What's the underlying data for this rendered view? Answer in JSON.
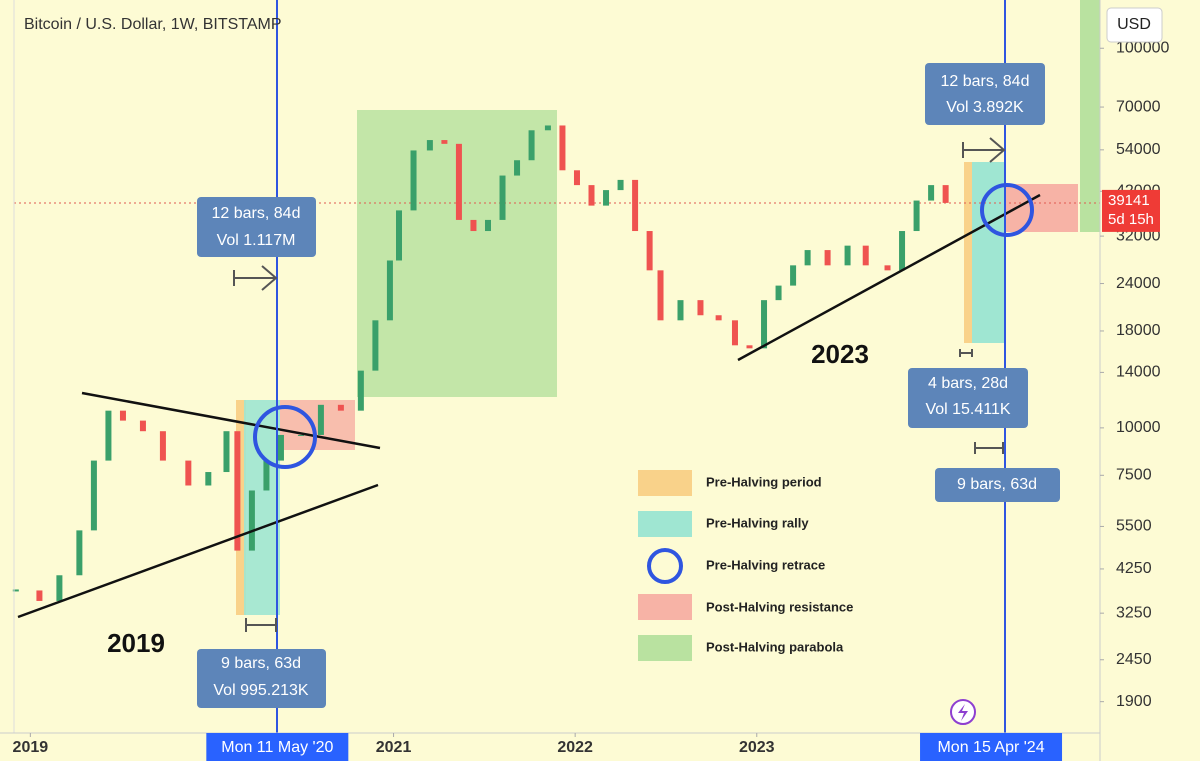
{
  "chart_data": {
    "type": "candlestick",
    "title": "Bitcoin / U.S. Dollar, 1W, BITSTAMP",
    "currency": "USD",
    "log_scale": true,
    "up_color": "#3aa06a",
    "down_color": "#ef5350",
    "series": [
      {
        "name": "BTCUSD",
        "x": [
          2018.92,
          2019.05,
          2019.16,
          2019.27,
          2019.35,
          2019.43,
          2019.51,
          2019.62,
          2019.73,
          2019.87,
          2019.98,
          2020.08,
          2020.14,
          2020.22,
          2020.3,
          2020.38,
          2020.49,
          2020.6,
          2020.71,
          2020.82,
          2020.9,
          2020.98,
          2021.03,
          2021.11,
          2021.2,
          2021.28,
          2021.36,
          2021.44,
          2021.52,
          2021.6,
          2021.68,
          2021.76,
          2021.85,
          2021.93,
          2022.01,
          2022.09,
          2022.17,
          2022.25,
          2022.33,
          2022.41,
          2022.47,
          2022.58,
          2022.69,
          2022.79,
          2022.88,
          2022.96,
          2023.04,
          2023.12,
          2023.2,
          2023.28,
          2023.39,
          2023.5,
          2023.6,
          2023.72,
          2023.8,
          2023.88,
          2023.96,
          2024.04
        ],
        "values": [
          3730,
          3500,
          4090,
          5370,
          8200,
          11100,
          10450,
          9800,
          8200,
          7050,
          7650,
          9800,
          4750,
          6840,
          8200,
          9580,
          9580,
          11500,
          11100,
          14150,
          19200,
          27600,
          37400,
          53800,
          57300,
          56000,
          35300,
          33000,
          35300,
          46200,
          50700,
          60800,
          62600,
          47700,
          43600,
          38500,
          42300,
          45000,
          33000,
          26000,
          19200,
          21700,
          19800,
          19200,
          16500,
          16200,
          21700,
          23700,
          26800,
          29400,
          26800,
          30200,
          26800,
          26000,
          33000,
          39700,
          43600,
          39141
        ]
      }
    ],
    "last_price_countdown": "5d 15h",
    "xlim": [
      2018.91,
      2024.89
    ],
    "xticks": [
      2019,
      2021,
      2022,
      2023
    ],
    "ylim": [
      1600,
      134000
    ],
    "yticks": [
      1900,
      2450,
      3250,
      4250,
      5500,
      7500,
      10000,
      14000,
      18000,
      24000,
      32000,
      42000,
      54000,
      70000,
      100000
    ],
    "markers": [
      {
        "label": "Mon 11 May '20",
        "x": 2020.36
      },
      {
        "label": "Mon 15 Apr '24",
        "x": 2024.29
      }
    ],
    "annotations": {
      "cycle_2019": "2019",
      "cycle_2023": "2023",
      "box_2020_top": [
        "12 bars, 84d",
        "Vol 1.117M"
      ],
      "box_2020_bottom": [
        "9 bars, 63d",
        "Vol 995.213K"
      ],
      "box_2024_top": [
        "12 bars, 84d",
        "Vol 3.892K"
      ],
      "box_2024_mid": [
        "4 bars, 28d",
        "Vol 15.411K"
      ],
      "box_2024_low": [
        "9 bars, 63d"
      ]
    },
    "legend": [
      "Pre-Halving period",
      "Pre-Halving rally",
      "Pre-Halving retrace",
      "Post-Halving resistance",
      "Post-Halving parabola"
    ]
  }
}
